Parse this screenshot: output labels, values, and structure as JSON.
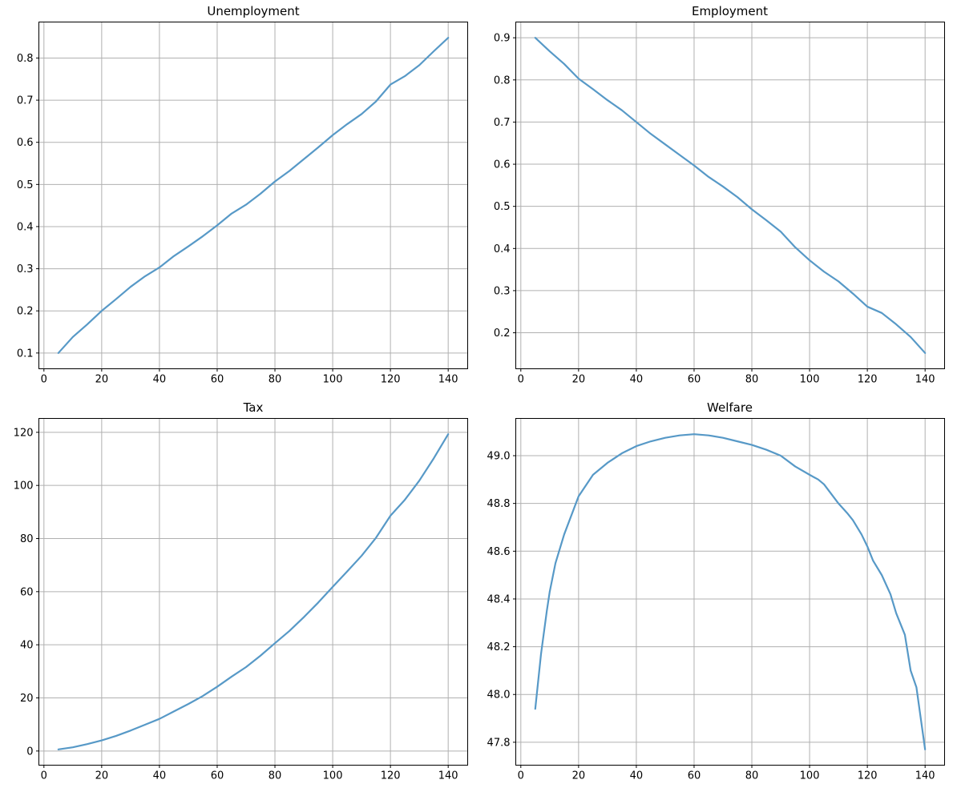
{
  "figure": {
    "background": "#ffffff",
    "grid_color": "#b0b0b0",
    "spine_color": "#000000",
    "tick_color": "#000000",
    "tick_label_color": "#000000",
    "line_color": "#5799c7"
  },
  "chart_data": [
    {
      "type": "line",
      "title": "Unemployment",
      "xlabel": "",
      "ylabel": "",
      "grid": true,
      "legend_position": "none",
      "xlim": [
        -1.75,
        146.75
      ],
      "ylim": [
        0.0626,
        0.8854
      ],
      "xticks": [
        0,
        20,
        40,
        60,
        80,
        100,
        120,
        140
      ],
      "xticklabels": [
        "0",
        "20",
        "40",
        "60",
        "80",
        "100",
        "120",
        "140"
      ],
      "yticks": [
        0.1,
        0.2,
        0.3,
        0.4,
        0.5,
        0.6,
        0.7,
        0.8
      ],
      "yticklabels": [
        "0.1",
        "0.2",
        "0.3",
        "0.4",
        "0.5",
        "0.6",
        "0.7",
        "0.8"
      ],
      "x": [
        5,
        10,
        15,
        20,
        25,
        30,
        35,
        40,
        45,
        50,
        55,
        60,
        65,
        70,
        75,
        80,
        85,
        90,
        95,
        100,
        105,
        110,
        115,
        120,
        125,
        130,
        135,
        140
      ],
      "y": [
        0.1,
        0.138,
        0.168,
        0.2,
        0.228,
        0.257,
        0.282,
        0.303,
        0.33,
        0.353,
        0.377,
        0.403,
        0.431,
        0.452,
        0.478,
        0.507,
        0.532,
        0.56,
        0.588,
        0.617,
        0.643,
        0.667,
        0.697,
        0.737,
        0.757,
        0.783,
        0.816,
        0.848
      ]
    },
    {
      "type": "line",
      "title": "Employment",
      "xlabel": "",
      "ylabel": "",
      "grid": true,
      "legend_position": "none",
      "xlim": [
        -1.75,
        146.75
      ],
      "ylim": [
        0.1146,
        0.9374
      ],
      "xticks": [
        0,
        20,
        40,
        60,
        80,
        100,
        120,
        140
      ],
      "xticklabels": [
        "0",
        "20",
        "40",
        "60",
        "80",
        "100",
        "120",
        "140"
      ],
      "yticks": [
        0.2,
        0.3,
        0.4,
        0.5,
        0.6,
        0.7,
        0.8,
        0.9
      ],
      "yticklabels": [
        "0.2",
        "0.3",
        "0.4",
        "0.5",
        "0.6",
        "0.7",
        "0.8",
        "0.9"
      ],
      "x": [
        5,
        10,
        15,
        20,
        25,
        30,
        35,
        40,
        45,
        50,
        55,
        60,
        65,
        70,
        75,
        80,
        85,
        90,
        95,
        100,
        105,
        110,
        115,
        120,
        125,
        130,
        135,
        140
      ],
      "y": [
        0.9,
        0.868,
        0.838,
        0.803,
        0.778,
        0.752,
        0.728,
        0.7,
        0.672,
        0.647,
        0.622,
        0.597,
        0.57,
        0.547,
        0.522,
        0.493,
        0.467,
        0.44,
        0.403,
        0.372,
        0.345,
        0.322,
        0.293,
        0.262,
        0.247,
        0.22,
        0.19,
        0.152
      ]
    },
    {
      "type": "line",
      "title": "Tax",
      "xlabel": "",
      "ylabel": "",
      "grid": true,
      "legend_position": "none",
      "xlim": [
        -1.75,
        146.75
      ],
      "ylim": [
        -5.33,
        125.23
      ],
      "xticks": [
        0,
        20,
        40,
        60,
        80,
        100,
        120,
        140
      ],
      "xticklabels": [
        "0",
        "20",
        "40",
        "60",
        "80",
        "100",
        "120",
        "140"
      ],
      "yticks": [
        0,
        20,
        40,
        60,
        80,
        100,
        120
      ],
      "yticklabels": [
        "0",
        "20",
        "40",
        "60",
        "80",
        "100",
        "120"
      ],
      "x": [
        5,
        10,
        15,
        20,
        25,
        30,
        35,
        40,
        45,
        50,
        55,
        60,
        65,
        70,
        75,
        80,
        85,
        90,
        95,
        100,
        105,
        110,
        115,
        120,
        125,
        130,
        135,
        140
      ],
      "y": [
        0.6,
        1.4,
        2.6,
        4.0,
        5.7,
        7.7,
        9.9,
        12.1,
        14.9,
        17.7,
        20.7,
        24.2,
        28.0,
        31.6,
        35.9,
        40.6,
        45.2,
        50.4,
        55.9,
        61.8,
        67.6,
        73.5,
        80.3,
        88.6,
        94.6,
        101.8,
        110.2,
        119.3
      ]
    },
    {
      "type": "line",
      "title": "Welfare",
      "xlabel": "",
      "ylabel": "",
      "grid": true,
      "legend_position": "none",
      "xlim": [
        -1.75,
        146.75
      ],
      "ylim": [
        47.704,
        49.156
      ],
      "xticks": [
        0,
        20,
        40,
        60,
        80,
        100,
        120,
        140
      ],
      "xticklabels": [
        "0",
        "20",
        "40",
        "60",
        "80",
        "100",
        "120",
        "140"
      ],
      "yticks": [
        47.8,
        48.0,
        48.2,
        48.4,
        48.6,
        48.8,
        49.0
      ],
      "yticklabels": [
        "47.8",
        "48.0",
        "48.2",
        "48.4",
        "48.6",
        "48.8",
        "49.0"
      ],
      "x": [
        5,
        7,
        9,
        10,
        12,
        15,
        20,
        25,
        30,
        35,
        40,
        45,
        50,
        55,
        60,
        65,
        70,
        75,
        80,
        85,
        90,
        95,
        100,
        103,
        105,
        110,
        113,
        115,
        118,
        120,
        122,
        125,
        128,
        130,
        133,
        135,
        137,
        140
      ],
      "y": [
        47.94,
        48.17,
        48.35,
        48.43,
        48.55,
        48.67,
        48.83,
        48.92,
        48.97,
        49.01,
        49.04,
        49.06,
        49.075,
        49.085,
        49.09,
        49.085,
        49.075,
        49.06,
        49.045,
        49.025,
        49.0,
        48.955,
        48.92,
        48.9,
        48.88,
        48.8,
        48.76,
        48.73,
        48.67,
        48.62,
        48.56,
        48.5,
        48.42,
        48.34,
        48.25,
        48.1,
        48.03,
        47.77
      ]
    }
  ]
}
